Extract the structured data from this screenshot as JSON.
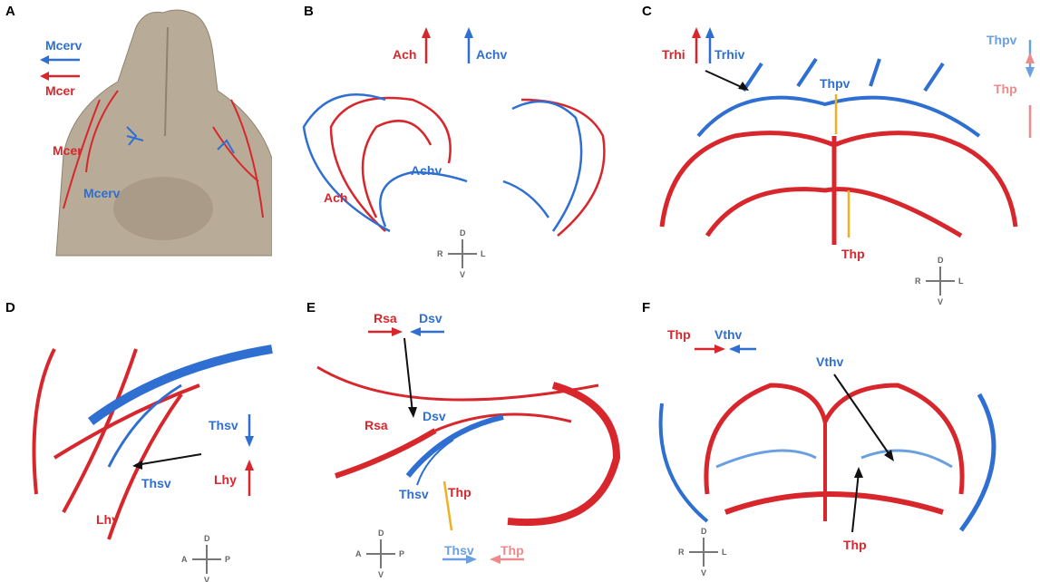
{
  "panels": {
    "a": {
      "label": "A",
      "arrow_blue": "Mcerv",
      "arrow_red": "Mcer",
      "lbl_red": "Mcer",
      "lbl_blue": "Mcerv"
    },
    "b": {
      "label": "B",
      "arrow_red": "Ach",
      "arrow_blue": "Achv",
      "lbl_blue": "Achv",
      "lbl_red": "Ach",
      "compass": {
        "top": "D",
        "bottom": "V",
        "left": "R",
        "right": "L"
      }
    },
    "c": {
      "label": "C",
      "arrow_red": "Trhi",
      "arrow_blue": "Trhiv",
      "arrow_right_blue": "Thpv",
      "arrow_right_pink": "Thp",
      "lbl_blue": "Thpv",
      "lbl_red": "Thp",
      "compass": {
        "top": "D",
        "bottom": "V",
        "left": "R",
        "right": "L"
      }
    },
    "d": {
      "label": "D",
      "arrow_blue": "Thsv",
      "arrow_red": "Lhy",
      "lbl_blue": "Thsv",
      "lbl_red": "Lhy",
      "compass": {
        "top": "D",
        "bottom": "V",
        "left": "A",
        "right": "P"
      }
    },
    "e": {
      "label": "E",
      "arrow_red": "Rsa",
      "arrow_blue": "Dsv",
      "lbl_red": "Rsa",
      "lbl_blue": "Dsv",
      "lbl_thsv": "Thsv",
      "lbl_thp": "Thp",
      "arrow_bottom_blue": "Thsv",
      "arrow_bottom_pink": "Thp",
      "compass": {
        "top": "D",
        "bottom": "V",
        "left": "A",
        "right": "P"
      }
    },
    "f": {
      "label": "F",
      "arrow_red": "Thp",
      "arrow_blue": "Vthv",
      "lbl_blue": "Vthv",
      "lbl_red": "Thp",
      "compass": {
        "top": "D",
        "bottom": "V",
        "left": "R",
        "right": "L"
      }
    }
  },
  "colors": {
    "artery": "#d8272c",
    "vein": "#2e6fd1",
    "brain": "#b8ab98",
    "pointer": "#f0b020"
  }
}
